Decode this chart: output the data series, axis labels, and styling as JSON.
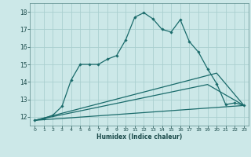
{
  "title": "",
  "xlabel": "Humidex (Indice chaleur)",
  "ylabel": "",
  "background_color": "#cce8e8",
  "grid_color": "#aacfcf",
  "line_color": "#1a6b6b",
  "xlim": [
    -0.5,
    23.5
  ],
  "ylim": [
    11.5,
    18.5
  ],
  "yticks": [
    12,
    13,
    14,
    15,
    16,
    17,
    18
  ],
  "xticks": [
    0,
    1,
    2,
    3,
    4,
    5,
    6,
    7,
    8,
    9,
    10,
    11,
    12,
    13,
    14,
    15,
    16,
    17,
    18,
    19,
    20,
    21,
    22,
    23
  ],
  "line1_x": [
    0,
    1,
    2,
    3,
    4,
    5,
    6,
    7,
    8,
    9,
    10,
    11,
    12,
    13,
    14,
    15,
    16,
    17,
    18,
    19,
    20,
    21,
    22,
    23
  ],
  "line1_y": [
    11.8,
    11.9,
    12.1,
    12.6,
    14.1,
    15.0,
    15.0,
    15.0,
    15.3,
    15.5,
    16.4,
    17.7,
    17.95,
    17.6,
    17.0,
    16.85,
    17.55,
    16.3,
    15.7,
    14.75,
    13.9,
    12.7,
    12.8,
    12.65
  ],
  "line2_x": [
    0,
    23
  ],
  "line2_y": [
    11.8,
    12.65
  ],
  "line3_x": [
    0,
    20,
    23
  ],
  "line3_y": [
    11.8,
    14.5,
    12.65
  ],
  "line4_x": [
    0,
    19,
    23
  ],
  "line4_y": [
    11.8,
    13.85,
    12.65
  ]
}
